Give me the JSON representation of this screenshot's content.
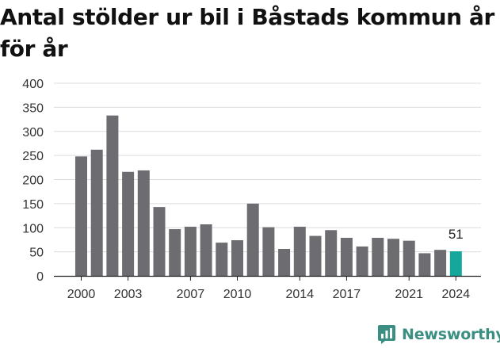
{
  "title": "Antal stölder ur bil i Båstads kommun år för år",
  "brand": {
    "name": "Newsworthy",
    "icon": "newsworthy-logo-icon",
    "color": "#3b8f82"
  },
  "chart_data": {
    "type": "bar",
    "title": "Antal stölder ur bil i Båstads kommun år för år",
    "xlabel": "",
    "ylabel": "",
    "categories": [
      "2000",
      "2001",
      "2002",
      "2003",
      "2004",
      "2005",
      "2006",
      "2007",
      "2008",
      "2009",
      "2010",
      "2011",
      "2012",
      "2013",
      "2014",
      "2015",
      "2016",
      "2017",
      "2018",
      "2019",
      "2020",
      "2021",
      "2022",
      "2023",
      "2024"
    ],
    "values": [
      248,
      262,
      333,
      216,
      219,
      143,
      97,
      102,
      107,
      69,
      74,
      150,
      101,
      56,
      102,
      83,
      95,
      79,
      61,
      79,
      77,
      73,
      47,
      54,
      51
    ],
    "ylim": [
      0,
      400
    ],
    "yticks": [
      0,
      50,
      100,
      150,
      200,
      250,
      300,
      350,
      400
    ],
    "xticks": [
      "2000",
      "2003",
      "2007",
      "2010",
      "2014",
      "2017",
      "2021",
      "2024"
    ],
    "highlight": {
      "category": "2024",
      "label": "51",
      "color": "#14a79a"
    },
    "bar_color": "#6d6c71",
    "grid": true,
    "legend": "none"
  }
}
